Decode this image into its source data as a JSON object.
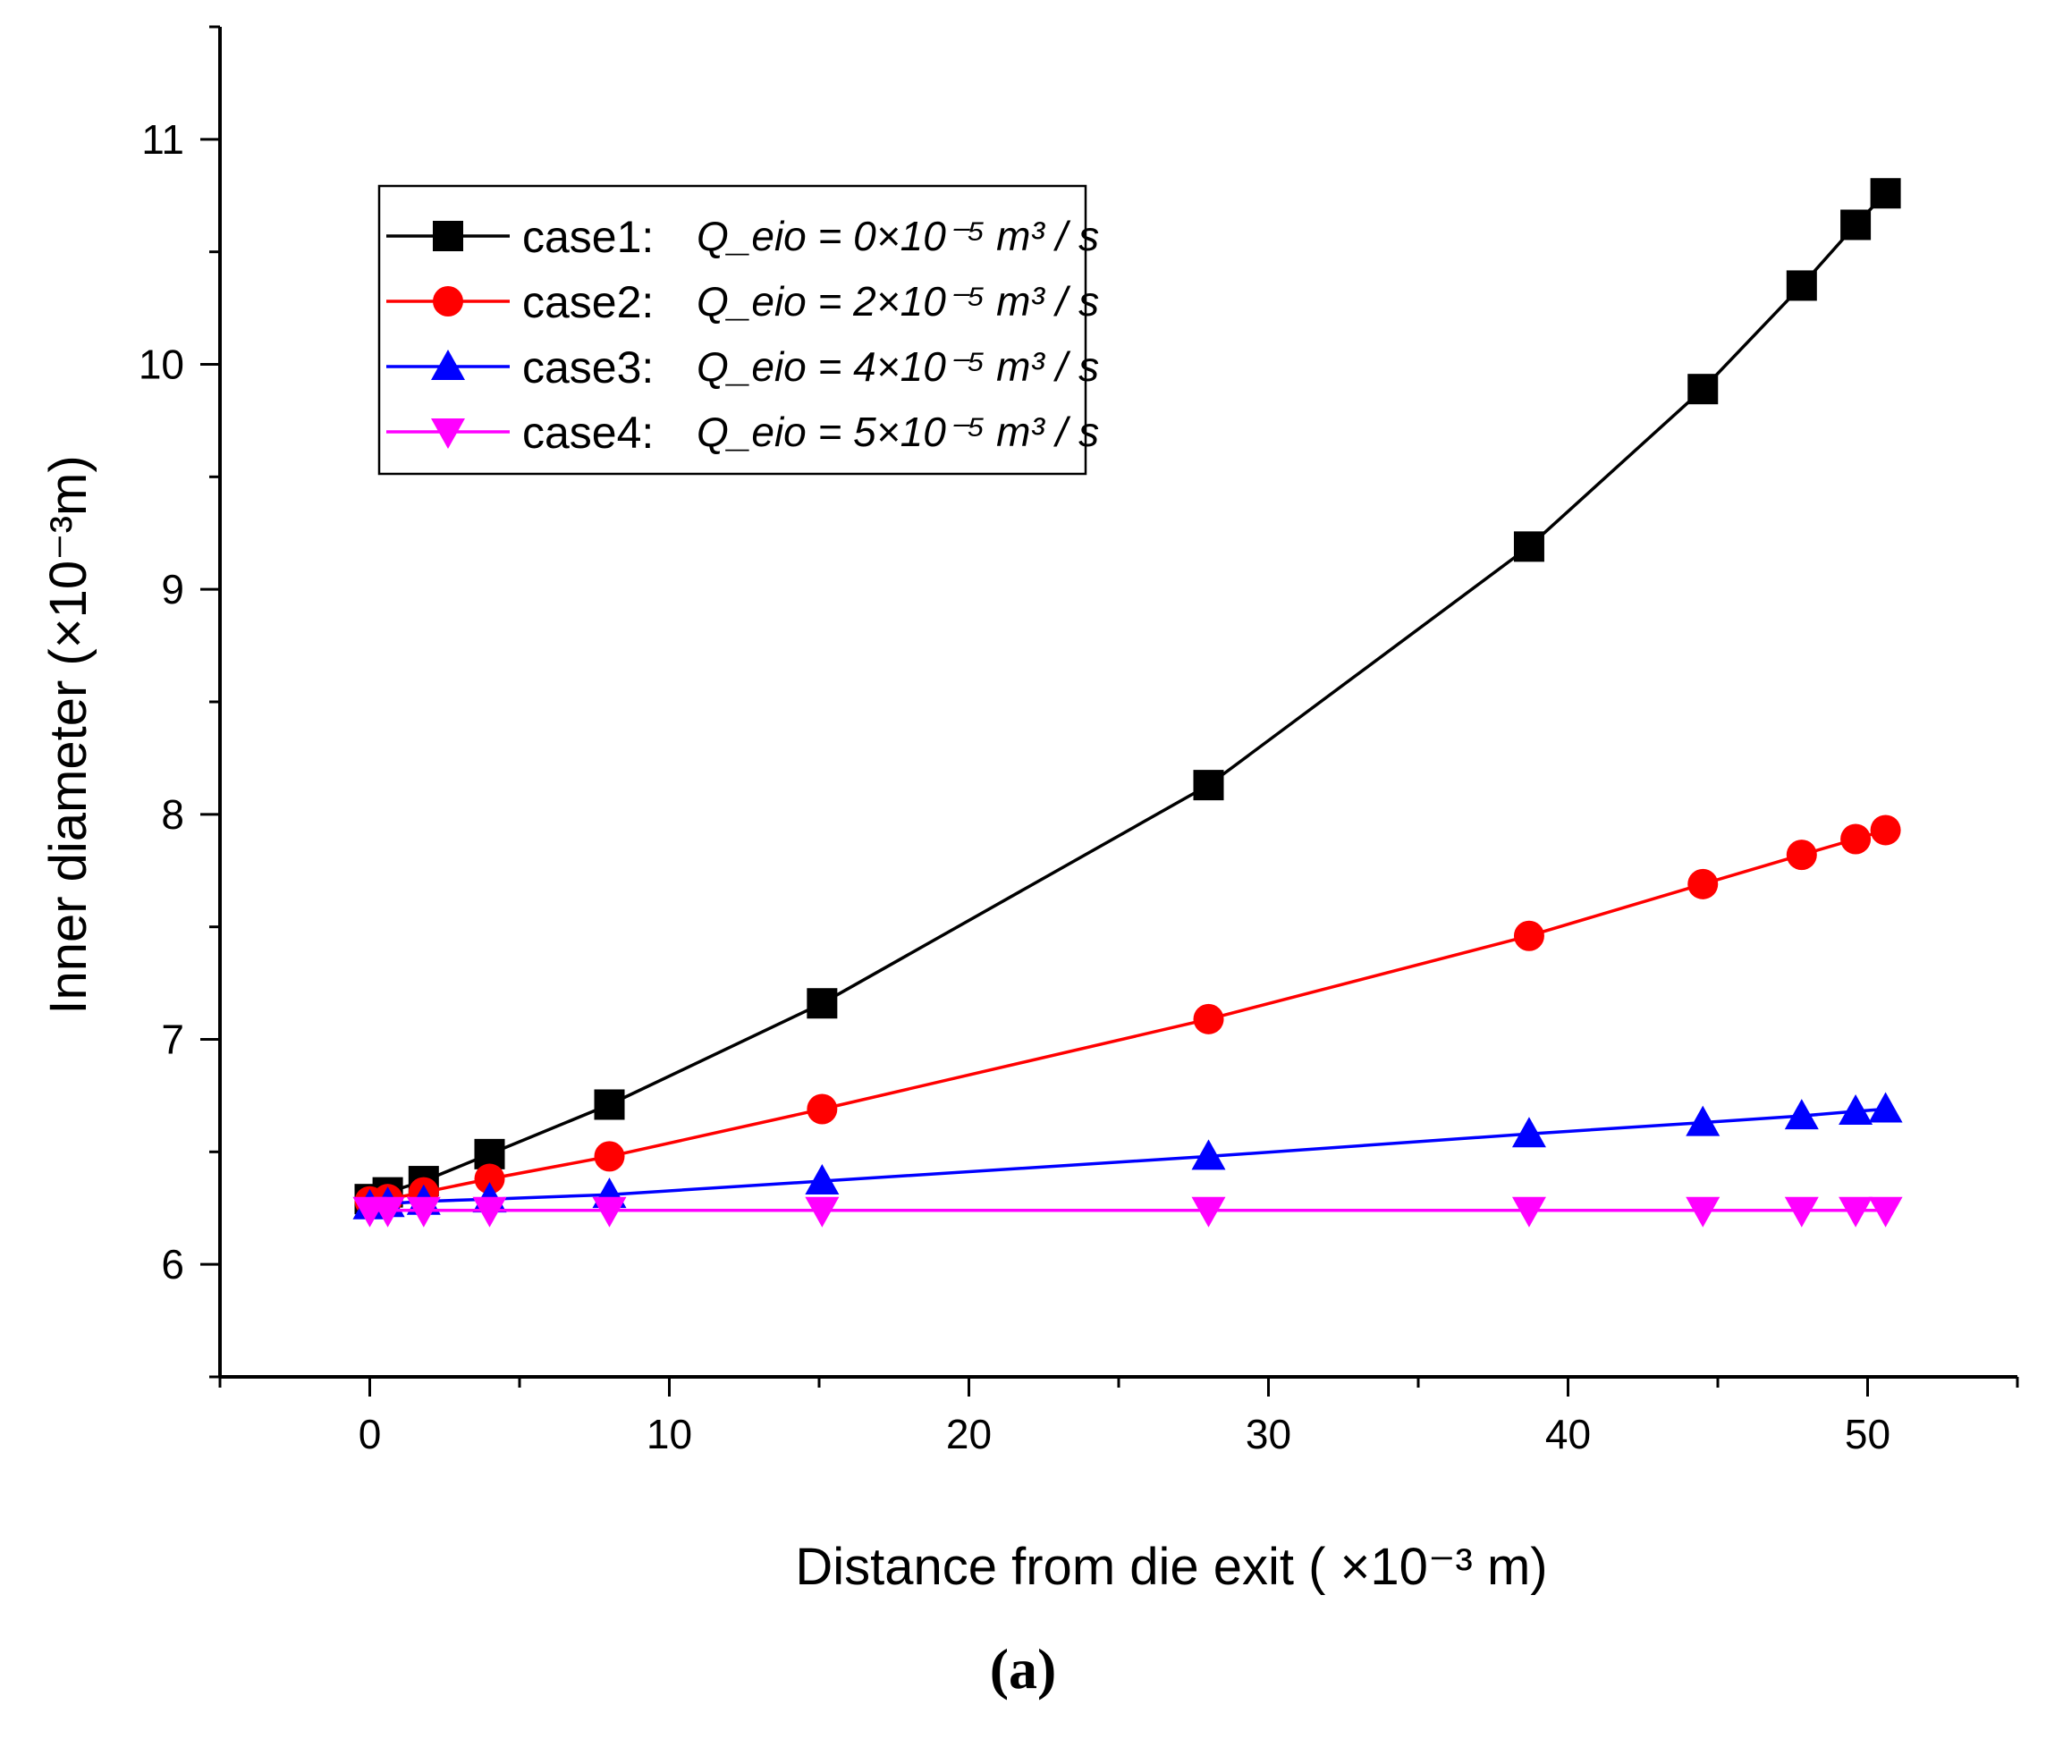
{
  "caption": "(a)",
  "chart_data": {
    "type": "line",
    "xlabel": "Distance from die exit ( ×10⁻³ m)",
    "ylabel": "Inner diameter (×10⁻³m)",
    "xlim": [
      -5,
      55
    ],
    "ylim": [
      5.5,
      11.5
    ],
    "x_ticks": [
      0,
      10,
      20,
      30,
      40,
      50
    ],
    "y_ticks": [
      6,
      7,
      8,
      9,
      10,
      11
    ],
    "legend_position": "top-left",
    "x": [
      0,
      0.6,
      1.8,
      4,
      8,
      15.1,
      28,
      38.7,
      44.5,
      47.8,
      49.6,
      50.6
    ],
    "series": [
      {
        "name": "case1",
        "legend_case": "case1:",
        "legend_formula": "Q_eio = 0×10⁻⁵ m³ / s",
        "color": "#000000",
        "marker": "square",
        "values": [
          6.29,
          6.32,
          6.37,
          6.49,
          6.71,
          7.16,
          8.13,
          9.19,
          9.89,
          10.35,
          10.62,
          10.76
        ]
      },
      {
        "name": "case2",
        "legend_case": "case2:",
        "legend_formula": "Q_eio = 2×10⁻⁵ m³ / s",
        "color": "#ff0000",
        "marker": "circle",
        "values": [
          6.28,
          6.29,
          6.32,
          6.38,
          6.48,
          6.69,
          7.09,
          7.46,
          7.69,
          7.82,
          7.89,
          7.93
        ]
      },
      {
        "name": "case3",
        "legend_case": "case3:",
        "legend_formula": "Q_eio = 4×10⁻⁵ m³ / s",
        "color": "#0000ff",
        "marker": "triangle-up",
        "values": [
          6.26,
          6.27,
          6.28,
          6.29,
          6.31,
          6.37,
          6.48,
          6.58,
          6.63,
          6.66,
          6.68,
          6.69
        ]
      },
      {
        "name": "case4",
        "legend_case": "case4:",
        "legend_formula": "Q_eio = 5×10⁻⁵ m³ / s",
        "color": "#ff00ff",
        "marker": "triangle-down",
        "values": [
          6.24,
          6.24,
          6.24,
          6.24,
          6.24,
          6.24,
          6.24,
          6.24,
          6.24,
          6.24,
          6.24,
          6.24
        ]
      }
    ]
  }
}
